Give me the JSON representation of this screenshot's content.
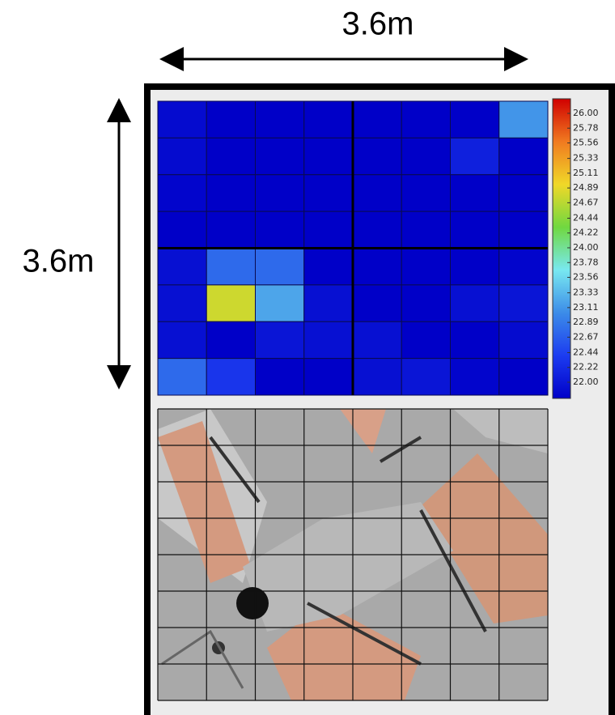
{
  "chart_data": {
    "type": "heatmap",
    "x_label": "3.6m",
    "y_label": "3.6m",
    "values": [
      [
        22.1,
        22.0,
        22.0,
        22.0,
        22.0,
        22.0,
        22.0,
        23.2
      ],
      [
        22.1,
        22.0,
        22.0,
        22.0,
        22.0,
        22.0,
        22.3,
        22.0
      ],
      [
        22.05,
        22.0,
        22.0,
        22.0,
        22.0,
        22.0,
        22.0,
        22.0
      ],
      [
        22.0,
        22.0,
        22.0,
        22.0,
        22.0,
        22.0,
        22.0,
        22.0
      ],
      [
        22.15,
        22.9,
        22.9,
        22.0,
        22.0,
        22.0,
        22.0,
        22.05
      ],
      [
        22.15,
        24.7,
        23.3,
        22.15,
        22.0,
        22.0,
        22.15,
        22.2
      ],
      [
        22.15,
        22.0,
        22.2,
        22.15,
        22.15,
        22.0,
        22.0,
        22.1
      ],
      [
        22.9,
        22.5,
        22.0,
        22.0,
        22.15,
        22.2,
        22.05,
        22.0
      ]
    ],
    "clim": [
      22,
      26
    ],
    "colormap": [
      "#0000c8",
      "#1c3cf0",
      "#3c8ce8",
      "#78e8f0",
      "#70d840",
      "#f0d828",
      "#f07a20",
      "#d00000"
    ],
    "cticks": [
      {
        "value": 26,
        "label": "26.00"
      },
      {
        "value": 25.78,
        "label": "25.78"
      },
      {
        "value": 25.56,
        "label": "25.56"
      },
      {
        "value": 25.33,
        "label": "25.33"
      },
      {
        "value": 25.11,
        "label": "25.11"
      },
      {
        "value": 24.89,
        "label": "24.89"
      },
      {
        "value": 24.67,
        "label": "24.67"
      },
      {
        "value": 24.44,
        "label": "24.44"
      },
      {
        "value": 24.22,
        "label": "24.22"
      },
      {
        "value": 24,
        "label": "24.00"
      },
      {
        "value": 23.78,
        "label": "23.78"
      },
      {
        "value": 23.56,
        "label": "23.56"
      },
      {
        "value": 23.33,
        "label": "23.33"
      },
      {
        "value": 23.11,
        "label": "23.11"
      },
      {
        "value": 22.89,
        "label": "22.89"
      },
      {
        "value": 22.67,
        "label": "22.67"
      },
      {
        "value": 22.44,
        "label": "22.44"
      },
      {
        "value": 22.22,
        "label": "22.22"
      },
      {
        "value": 22,
        "label": "22.00"
      }
    ]
  }
}
